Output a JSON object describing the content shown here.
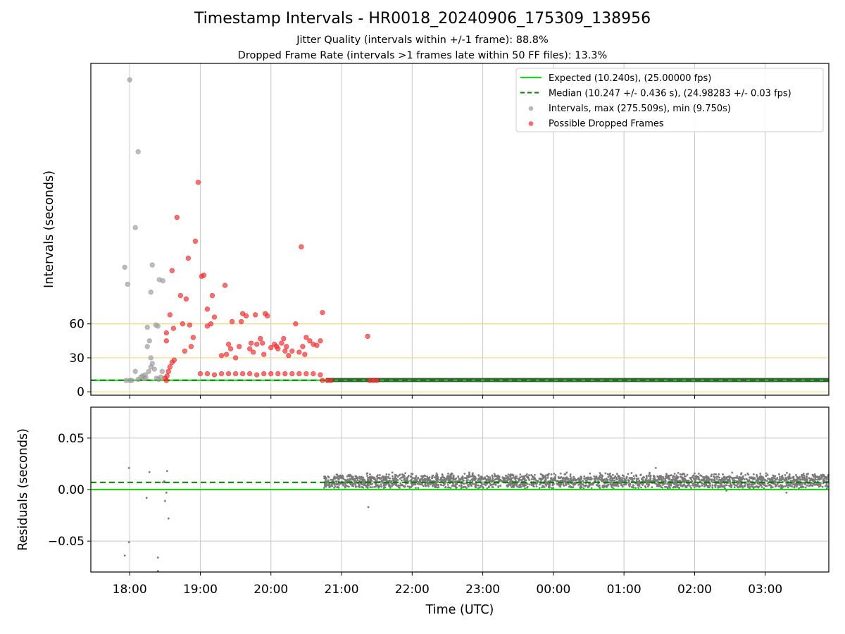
{
  "title": "Timestamp Intervals - HR0018_20240906_175309_138956",
  "subtitle_1": "Jitter Quality (intervals within +/-1 frame): 88.8%",
  "subtitle_2": "Dropped Frame Rate (intervals >1 frames late within 50 FF files): 13.3%",
  "chart_data": [
    {
      "type": "scatter",
      "panel": "intervals",
      "xlabel": "",
      "ylabel": "Intervals (seconds)",
      "x_unit": "hours since 00:00 UTC (values beyond 24 are next-day hours)",
      "xlim": [
        17.45,
        27.9
      ],
      "ylim": [
        -3,
        290
      ],
      "y_ticks": [
        0,
        30,
        60
      ],
      "y_tick_labels": [
        "0",
        "30",
        "60"
      ],
      "reference_lines_y": [
        0,
        30,
        60
      ],
      "reference_line_color": "#f5d77a",
      "grid": true,
      "legend": "top-right",
      "legend_entries": [
        {
          "label": "Expected (10.240s), (25.00000 fps)",
          "style": "solid-line",
          "color": "#00e600"
        },
        {
          "label": "Median (10.247 +/- 0.436 s), (24.98283 +/- 0.03 fps)",
          "style": "dashed-line",
          "color": "#008000"
        },
        {
          "label": "Intervals, max (275.509s), min (9.750s)",
          "style": "marker",
          "color": "#a0a0a0"
        },
        {
          "label": "Possible Dropped Frames",
          "style": "marker",
          "color": "#ff3030"
        }
      ],
      "expected_y": 10.24,
      "median_y": 10.247,
      "series": [
        {
          "name": "Intervals, max (275.509s), min (9.750s)",
          "color": "#a0a0a0",
          "points": [
            [
              17.93,
              110
            ],
            [
              17.97,
              95
            ],
            [
              18.0,
              275.5
            ],
            [
              18.12,
              212
            ],
            [
              18.08,
              145
            ],
            [
              18.32,
              112
            ],
            [
              18.25,
              57
            ],
            [
              18.37,
              59
            ],
            [
              18.4,
              58
            ],
            [
              18.42,
              99
            ],
            [
              18.47,
              98
            ],
            [
              18.3,
              88
            ],
            [
              18.28,
              45
            ],
            [
              18.25,
              40
            ],
            [
              18.3,
              30
            ],
            [
              18.3,
              22
            ],
            [
              18.32,
              25
            ],
            [
              18.35,
              20
            ],
            [
              18.22,
              15
            ],
            [
              18.2,
              12
            ],
            [
              18.18,
              14
            ],
            [
              18.27,
              18
            ],
            [
              18.38,
              12
            ],
            [
              18.44,
              13
            ],
            [
              18.46,
              18
            ],
            [
              18.08,
              18
            ],
            [
              18.0,
              10
            ],
            [
              17.95,
              10
            ],
            [
              18.03,
              10
            ],
            [
              18.12,
              11
            ],
            [
              18.16,
              13
            ],
            [
              18.23,
              12
            ],
            [
              18.41,
              11
            ]
          ]
        },
        {
          "name": "Possible Dropped Frames",
          "color": "#ff3030",
          "points": [
            [
              18.52,
              10
            ],
            [
              18.5,
              12
            ],
            [
              18.53,
              14
            ],
            [
              18.55,
              18
            ],
            [
              18.57,
              22
            ],
            [
              18.6,
              26
            ],
            [
              18.63,
              28
            ],
            [
              18.52,
              45
            ],
            [
              18.52,
              52
            ],
            [
              18.57,
              68
            ],
            [
              18.62,
              56
            ],
            [
              18.6,
              107
            ],
            [
              18.67,
              154
            ],
            [
              18.72,
              85
            ],
            [
              18.75,
              60
            ],
            [
              18.78,
              36
            ],
            [
              18.8,
              82
            ],
            [
              18.83,
              118
            ],
            [
              18.85,
              59
            ],
            [
              18.87,
              40
            ],
            [
              18.9,
              48
            ],
            [
              18.93,
              133
            ],
            [
              18.97,
              185
            ],
            [
              19.02,
              102
            ],
            [
              19.05,
              103
            ],
            [
              19.1,
              73
            ],
            [
              19.1,
              58
            ],
            [
              19.15,
              60
            ],
            [
              19.17,
              85
            ],
            [
              19.2,
              66
            ],
            [
              19.3,
              32
            ],
            [
              19.35,
              94
            ],
            [
              19.4,
              42
            ],
            [
              19.43,
              38
            ],
            [
              19.37,
              33
            ],
            [
              19.45,
              62
            ],
            [
              19.5,
              30
            ],
            [
              19.55,
              40
            ],
            [
              19.58,
              62
            ],
            [
              19.6,
              69
            ],
            [
              19.65,
              67
            ],
            [
              19.7,
              38
            ],
            [
              19.72,
              43
            ],
            [
              19.75,
              35
            ],
            [
              19.78,
              68
            ],
            [
              19.8,
              42
            ],
            [
              19.85,
              47
            ],
            [
              19.88,
              43
            ],
            [
              19.9,
              33
            ],
            [
              19.92,
              69
            ],
            [
              19.95,
              67
            ],
            [
              20.0,
              39
            ],
            [
              20.05,
              42
            ],
            [
              20.08,
              40
            ],
            [
              20.1,
              38
            ],
            [
              20.15,
              43
            ],
            [
              20.18,
              47
            ],
            [
              20.2,
              36
            ],
            [
              20.22,
              40
            ],
            [
              20.25,
              32
            ],
            [
              20.3,
              36
            ],
            [
              20.35,
              60
            ],
            [
              20.4,
              35
            ],
            [
              20.43,
              128
            ],
            [
              20.45,
              40
            ],
            [
              20.48,
              33
            ],
            [
              20.5,
              48
            ],
            [
              20.55,
              45
            ],
            [
              20.6,
              42
            ],
            [
              20.65,
              41
            ],
            [
              20.7,
              45
            ],
            [
              20.73,
              70
            ],
            [
              21.37,
              49
            ],
            [
              19.0,
              16
            ],
            [
              19.1,
              16
            ],
            [
              19.2,
              15
            ],
            [
              19.3,
              16
            ],
            [
              19.4,
              16
            ],
            [
              19.5,
              16
            ],
            [
              19.6,
              16
            ],
            [
              19.7,
              16
            ],
            [
              19.8,
              15
            ],
            [
              19.9,
              16
            ],
            [
              20.0,
              16
            ],
            [
              20.1,
              16
            ],
            [
              20.2,
              16
            ],
            [
              20.3,
              16
            ],
            [
              20.4,
              16
            ],
            [
              20.5,
              16
            ],
            [
              20.6,
              16
            ],
            [
              20.7,
              15
            ],
            [
              20.73,
              10
            ],
            [
              20.8,
              10
            ],
            [
              20.85,
              10
            ],
            [
              21.4,
              10
            ],
            [
              21.45,
              10
            ],
            [
              21.5,
              10
            ]
          ]
        }
      ]
    },
    {
      "type": "scatter",
      "panel": "residuals",
      "xlabel": "Time (UTC)",
      "ylabel": "Residuals (seconds)",
      "x_unit": "hours since 00:00 UTC (values beyond 24 are next-day hours)",
      "xlim": [
        17.45,
        27.9
      ],
      "ylim": [
        -0.08,
        0.08
      ],
      "x_ticks": [
        18,
        19,
        20,
        21,
        22,
        23,
        24,
        25,
        26,
        27
      ],
      "x_tick_labels": [
        "18:00",
        "19:00",
        "20:00",
        "21:00",
        "22:00",
        "23:00",
        "00:00",
        "01:00",
        "02:00",
        "03:00"
      ],
      "y_ticks": [
        0.05,
        0.0,
        -0.05
      ],
      "y_tick_labels": [
        "0.05",
        "0.00",
        "−0.05"
      ],
      "grid": true,
      "expected_y": 0.0,
      "median_y": 0.007,
      "series": [
        {
          "name": "",
          "color": "#7a7a7a",
          "points": [
            [
              17.93,
              -0.064
            ],
            [
              17.99,
              -0.051
            ],
            [
              17.99,
              0.021
            ],
            [
              18.28,
              0.017
            ],
            [
              18.24,
              -0.008
            ],
            [
              18.4,
              -0.066
            ],
            [
              18.4,
              -0.079
            ],
            [
              18.47,
              0.007
            ],
            [
              18.49,
              0.008
            ],
            [
              18.5,
              -0.011
            ],
            [
              18.53,
              0.018
            ],
            [
              18.52,
              -0.003
            ],
            [
              18.55,
              -0.028
            ],
            [
              21.38,
              -0.017
            ],
            [
              25.45,
              0.021
            ],
            [
              26.45,
              -0.001
            ],
            [
              27.3,
              -0.003
            ]
          ],
          "band": {
            "x_range": [
              20.75,
              27.9
            ],
            "y_range": [
              0.001,
              0.017
            ]
          }
        }
      ]
    }
  ]
}
